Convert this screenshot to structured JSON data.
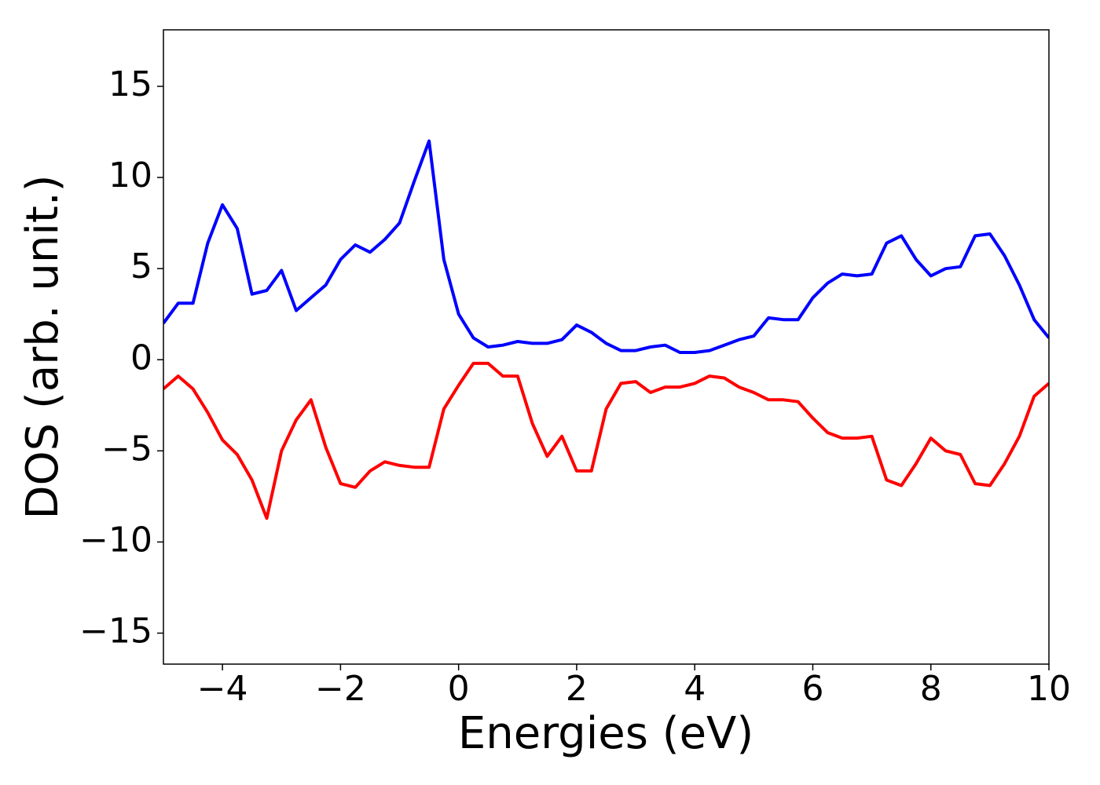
{
  "chart_data": {
    "type": "line",
    "x_label": "Energies (eV)",
    "y_label": "DOS (arb. unit.)",
    "x": [
      -5,
      -4.75,
      -4.5,
      -4.25,
      -4,
      -3.75,
      -3.5,
      -3.25,
      -3,
      -2.75,
      -2.5,
      -2.25,
      -2,
      -1.75,
      -1.5,
      -1.25,
      -1,
      -0.75,
      -0.5,
      -0.25,
      0,
      0.25,
      0.5,
      0.75,
      1,
      1.25,
      1.5,
      1.75,
      2,
      2.25,
      2.5,
      2.75,
      3,
      3.25,
      3.5,
      3.75,
      4,
      4.25,
      4.5,
      4.75,
      5,
      5.25,
      5.5,
      5.75,
      6,
      6.25,
      6.5,
      6.75,
      7,
      7.25,
      7.5,
      7.75,
      8,
      8.25,
      8.5,
      8.75,
      9,
      9.25,
      9.5,
      9.75,
      10
    ],
    "series": [
      {
        "color": "#0000ff",
        "values": [
          2.0,
          3.1,
          3.1,
          6.4,
          8.5,
          7.2,
          3.6,
          3.8,
          4.9,
          2.7,
          3.4,
          4.1,
          5.5,
          6.3,
          5.9,
          6.6,
          7.5,
          9.8,
          12.0,
          5.5,
          2.5,
          1.2,
          0.7,
          0.8,
          1.0,
          0.9,
          0.9,
          1.1,
          1.9,
          1.5,
          0.9,
          0.5,
          0.5,
          0.7,
          0.8,
          0.4,
          0.4,
          0.5,
          0.8,
          1.1,
          1.3,
          2.3,
          2.2,
          2.2,
          3.4,
          4.2,
          4.7,
          4.6,
          4.7,
          6.4,
          6.8,
          5.5,
          4.6,
          5.0,
          5.1,
          6.8,
          6.9,
          5.7,
          4.1,
          2.2,
          1.2
        ]
      },
      {
        "color": "#ff0000",
        "values": [
          -1.6,
          -0.9,
          -1.6,
          -2.9,
          -4.4,
          -5.2,
          -6.6,
          -8.7,
          -5.0,
          -3.3,
          -2.2,
          -4.8,
          -6.8,
          -7.0,
          -6.1,
          -5.6,
          -5.8,
          -5.9,
          -5.9,
          -2.7,
          -1.4,
          -0.2,
          -0.2,
          -0.9,
          -0.9,
          -3.5,
          -5.3,
          -4.2,
          -6.1,
          -6.1,
          -2.7,
          -1.3,
          -1.2,
          -1.8,
          -1.5,
          -1.5,
          -1.3,
          -0.9,
          -1.0,
          -1.5,
          -1.8,
          -2.2,
          -2.2,
          -2.3,
          -3.2,
          -4.0,
          -4.3,
          -4.3,
          -4.2,
          -6.6,
          -6.9,
          -5.7,
          -4.3,
          -5.0,
          -5.2,
          -6.8,
          -6.9,
          -5.7,
          -4.2,
          -2.0,
          -1.3
        ]
      }
    ],
    "xlim": [
      -5,
      10
    ],
    "xticks": [
      {
        "value": -4,
        "label": "−4"
      },
      {
        "value": -2,
        "label": "−2"
      },
      0,
      2,
      4,
      6,
      8,
      10
    ],
    "ylim": [
      -16.7,
      18.1
    ],
    "yticks": [
      {
        "value": -15,
        "label": "−15"
      },
      {
        "value": -10,
        "label": "−10"
      },
      {
        "value": -5,
        "label": "−5"
      },
      0,
      5,
      10,
      15
    ]
  }
}
